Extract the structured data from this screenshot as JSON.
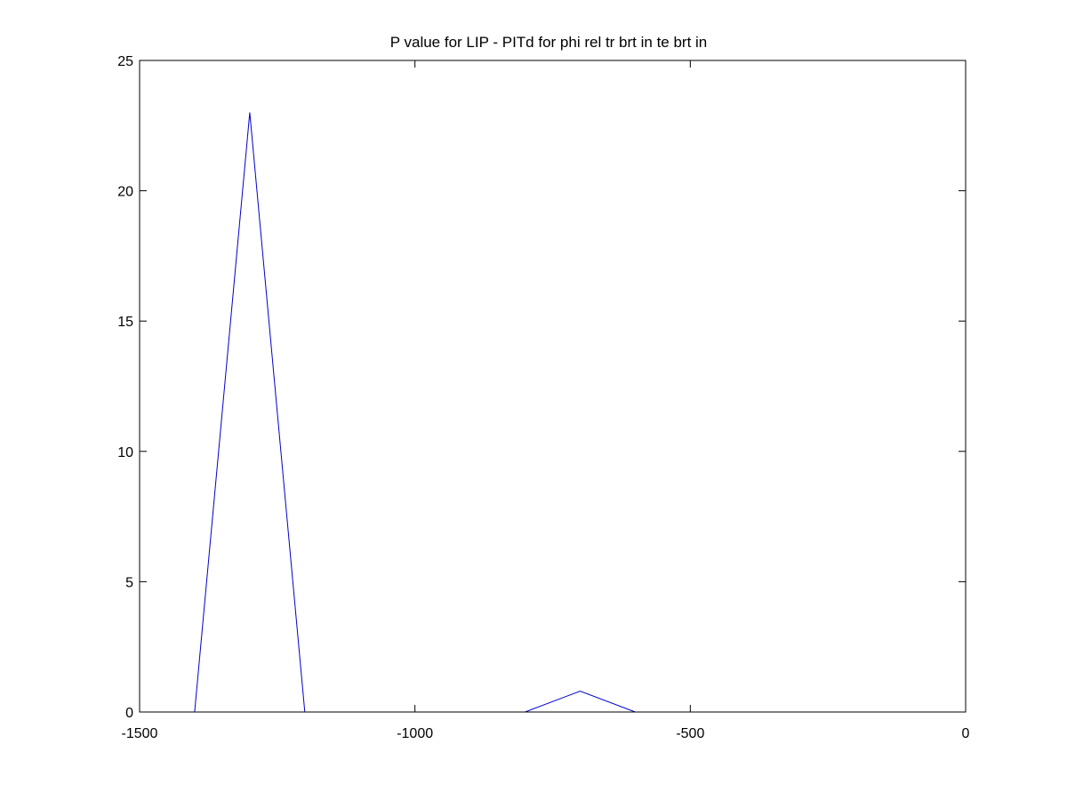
{
  "chart_data": {
    "type": "line",
    "title": "P value for LIP - PITd for phi rel tr brt in te brt in",
    "xlabel": "",
    "ylabel": "",
    "xlim": [
      -1500,
      0
    ],
    "ylim": [
      0,
      25
    ],
    "xticks": [
      -1500,
      -1000,
      -500,
      0
    ],
    "yticks": [
      0,
      5,
      10,
      15,
      20,
      25
    ],
    "xtick_labels": [
      "-1500",
      "-1000",
      "-500",
      "0"
    ],
    "ytick_labels": [
      "0",
      "5",
      "10",
      "15",
      "20",
      "25"
    ],
    "grid": false,
    "series": [
      {
        "color": "#0000cc",
        "x": [
          -1400,
          -1300,
          -1200,
          -1100,
          -1000,
          -900,
          -800,
          -700,
          -600,
          -500,
          -400,
          -300,
          -200,
          -100,
          0
        ],
        "y": [
          0,
          23,
          0,
          0,
          0,
          0,
          0,
          0.8,
          0,
          0,
          0,
          0,
          0,
          0,
          0
        ]
      }
    ]
  }
}
